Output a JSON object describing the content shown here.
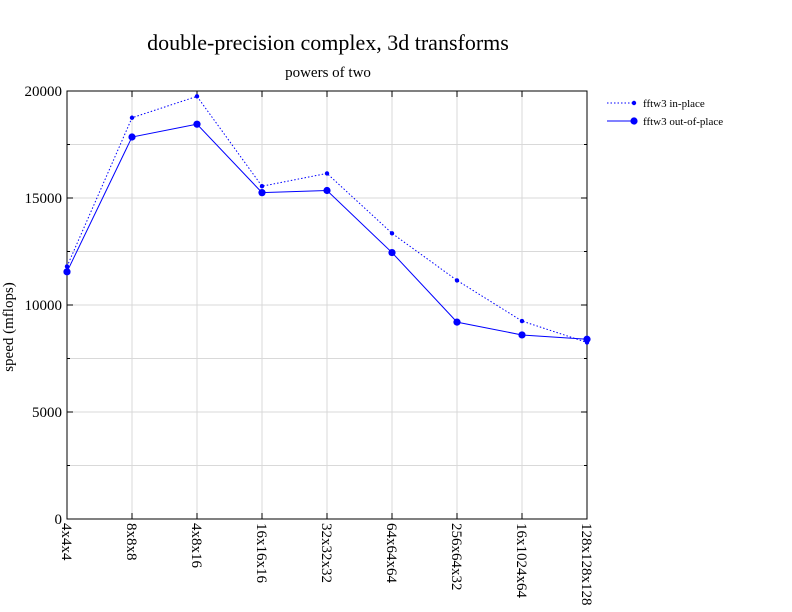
{
  "chart_data": {
    "type": "line",
    "title": "double-precision complex, 3d transforms",
    "subtitle": "powers of two",
    "xlabel": "",
    "ylabel": "speed (mflops)",
    "categories": [
      "4x4x4",
      "8x8x8",
      "4x8x16",
      "16x16x16",
      "32x32x32",
      "64x64x64",
      "256x64x32",
      "16x1024x64",
      "128x128x128"
    ],
    "ylim": [
      0,
      20000
    ],
    "yticks": [
      0,
      5000,
      10000,
      15000,
      20000
    ],
    "grid": true,
    "legend_position": "top-right, outside plot",
    "series": [
      {
        "name": "fftw3 in-place",
        "style": "dotted",
        "color": "#0000ff",
        "values": [
          11800,
          18750,
          19750,
          15550,
          16150,
          13350,
          11150,
          9250,
          8250
        ]
      },
      {
        "name": "fftw3 out-of-place",
        "style": "solid",
        "color": "#0000ff",
        "values": [
          11550,
          17850,
          18450,
          15250,
          15350,
          12450,
          9200,
          8600,
          8400
        ]
      }
    ]
  }
}
